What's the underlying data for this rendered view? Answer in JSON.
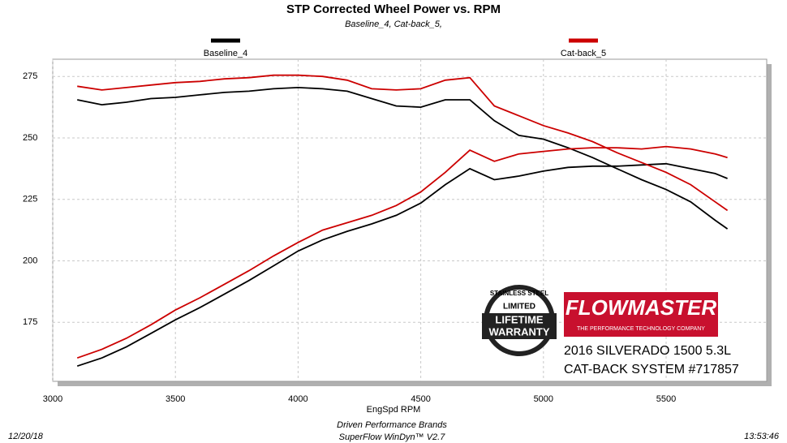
{
  "chart_data": {
    "type": "line",
    "title": "STP Corrected Wheel Power vs. RPM",
    "subtitle": "Baseline_4, Cat-back_5,",
    "x_label": "EngSpd  RPM",
    "x": [
      3100,
      3200,
      3300,
      3400,
      3500,
      3600,
      3700,
      3800,
      3900,
      4000,
      4100,
      4200,
      4300,
      4400,
      4500,
      4600,
      4700,
      4800,
      4900,
      5000,
      5100,
      5200,
      5300,
      5400,
      5500,
      5600,
      5700,
      5750
    ],
    "series": [
      {
        "name": "Baseline_4",
        "color": "#000000",
        "values": [
          265.5,
          263.5,
          264.5,
          266,
          266.5,
          267.5,
          268.5,
          269,
          270,
          270.5,
          270,
          269,
          266,
          263,
          262.5,
          265.5,
          265.5,
          257,
          251,
          249.5,
          246,
          242,
          237.5,
          233,
          229,
          224,
          216.5,
          213
        ]
      },
      {
        "color": "#000000",
        "values": [
          157.2,
          160.5,
          165,
          170.5,
          176,
          181,
          186.5,
          192,
          198,
          204,
          208.5,
          212,
          215,
          218.5,
          223.5,
          231,
          237.5,
          233,
          234.5,
          236.5,
          238,
          238.5,
          238.5,
          239,
          239.5,
          237.5,
          235.5,
          233.5
        ]
      },
      {
        "name": "Cat-back_5",
        "color": "#cc0000",
        "values": [
          271,
          269.5,
          270.5,
          271.5,
          272.5,
          273,
          274,
          274.5,
          275.5,
          275.5,
          275,
          273.5,
          270,
          269.5,
          270,
          273.5,
          274.5,
          263,
          259,
          255,
          252,
          248.5,
          244,
          240,
          236,
          231,
          224,
          220.5
        ]
      },
      {
        "color": "#cc0000",
        "values": [
          160.5,
          164,
          168.5,
          174,
          180,
          185,
          190.5,
          196,
          202,
          207.5,
          212.5,
          215.5,
          218.5,
          222.5,
          228,
          236,
          245,
          240.5,
          243.5,
          244.5,
          245.5,
          246,
          246,
          245.5,
          246.5,
          245.5,
          243.5,
          242
        ]
      }
    ],
    "xlim": [
      3000,
      5910
    ],
    "ylim": [
      151,
      282
    ],
    "xticks": [
      3000,
      3500,
      4000,
      4500,
      5000,
      5500
    ],
    "yticks": [
      175,
      200,
      225,
      250,
      275
    ],
    "grid": true,
    "footer": {
      "date": "12/20/18",
      "company": "Driven Performance Brands",
      "software": "SuperFlow WinDyn™ V2.7",
      "time": "13:53:46"
    },
    "badge": {
      "top": "STAINLESS STEEL",
      "middle": "LIMITED",
      "line1": "LIFETIME",
      "line2": "WARRANTY"
    },
    "logo": {
      "brand": "FLOWMASTER",
      "tagline": "THE PERFORMANCE TECHNOLOGY COMPANY",
      "vehicle": "2016 SILVERADO 1500 5.3L",
      "product": "CAT-BACK SYSTEM #717857"
    }
  }
}
